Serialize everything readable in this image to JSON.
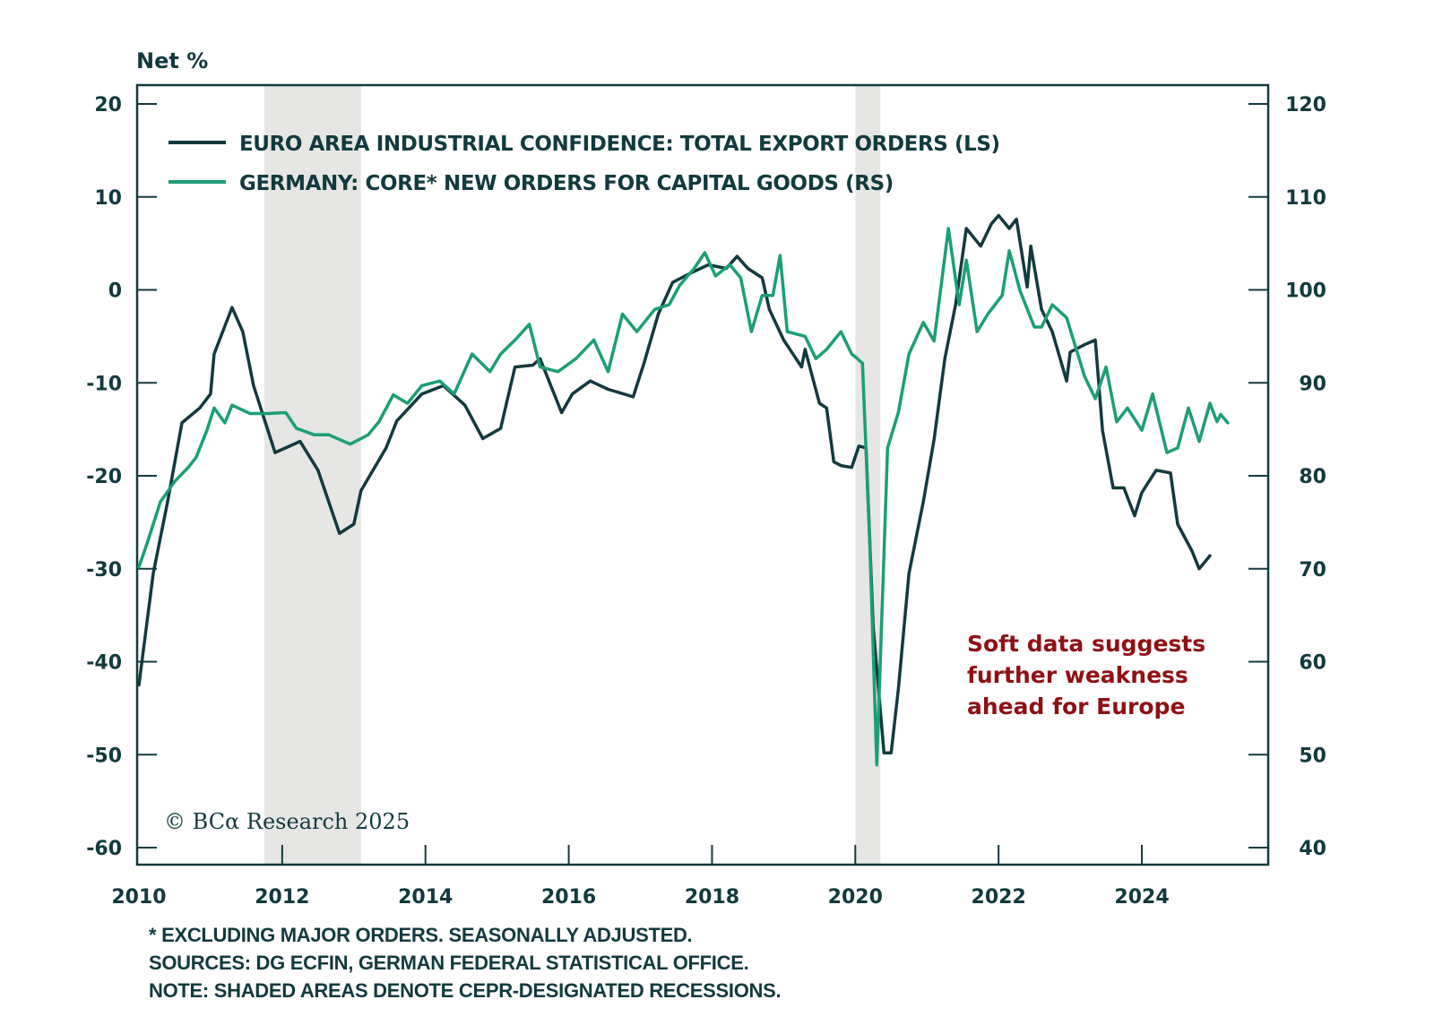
{
  "chart_data": {
    "type": "line",
    "title": "",
    "left_axis_unit": "Net %",
    "ylabel_left": "Net %",
    "ylabel_right": "",
    "xlim": [
      2010,
      2025.8
    ],
    "ylim_left": [
      -60,
      20
    ],
    "ylim_right": [
      40,
      120
    ],
    "x_ticks": [
      "2010",
      "2012",
      "2014",
      "2016",
      "2018",
      "2020",
      "2022",
      "2024"
    ],
    "x_tick_values": [
      2010,
      2012,
      2014,
      2016,
      2018,
      2020,
      2022,
      2024
    ],
    "y_ticks_left": [
      "20",
      "10",
      "0",
      "-10",
      "-20",
      "-30",
      "-40",
      "-50",
      "-60"
    ],
    "y_tick_values_left": [
      20,
      10,
      0,
      -10,
      -20,
      -30,
      -40,
      -50,
      -60
    ],
    "y_ticks_right": [
      "120",
      "110",
      "100",
      "90",
      "80",
      "70",
      "60",
      "50",
      "40"
    ],
    "y_tick_values_right": [
      120,
      110,
      100,
      90,
      80,
      70,
      60,
      50,
      40
    ],
    "grid": false,
    "legend_position": "top-left",
    "recessions": [
      [
        2011.75,
        2013.1
      ],
      [
        2020.0,
        2020.35
      ]
    ],
    "series": [
      {
        "name": "EURO AREA INDUSTRIAL CONFIDENCE: TOTAL EXPORT ORDERS (LS)",
        "axis": "left",
        "color": "#123a3e",
        "x": [
          2010.0,
          2010.2,
          2010.4,
          2010.6,
          2010.85,
          2011.0,
          2011.05,
          2011.3,
          2011.45,
          2011.6,
          2011.8,
          2011.9,
          2012.25,
          2012.5,
          2012.8,
          2013.0,
          2013.1,
          2013.45,
          2013.6,
          2013.95,
          2014.25,
          2014.55,
          2014.8,
          2015.05,
          2015.25,
          2015.5,
          2015.6,
          2015.9,
          2016.05,
          2016.3,
          2016.55,
          2016.9,
          2017.05,
          2017.25,
          2017.45,
          2017.7,
          2017.95,
          2018.2,
          2018.35,
          2018.5,
          2018.7,
          2018.8,
          2019.0,
          2019.25,
          2019.3,
          2019.5,
          2019.6,
          2019.7,
          2019.8,
          2019.95,
          2020.05,
          2020.15,
          2020.25,
          2020.4,
          2020.5,
          2020.6,
          2020.75,
          2020.95,
          2021.1,
          2021.25,
          2021.4,
          2021.55,
          2021.75,
          2021.9,
          2022.0,
          2022.15,
          2022.25,
          2022.4,
          2022.45,
          2022.6,
          2022.75,
          2022.95,
          2023.0,
          2023.2,
          2023.35,
          2023.45,
          2023.6,
          2023.75,
          2023.9,
          2024.0,
          2024.2,
          2024.4,
          2024.5,
          2024.7,
          2024.8,
          2024.95
        ],
        "values": [
          -42.5,
          -30.5,
          -22.8,
          -14.3,
          -12.7,
          -11.2,
          -6.9,
          -1.9,
          -4.5,
          -10.3,
          -15.1,
          -17.5,
          -16.3,
          -19.4,
          -26.2,
          -25.2,
          -21.6,
          -17.0,
          -14.1,
          -11.2,
          -10.3,
          -12.4,
          -16.0,
          -14.9,
          -8.3,
          -8.1,
          -7.4,
          -13.2,
          -11.2,
          -9.8,
          -10.7,
          -11.5,
          -7.9,
          -2.6,
          0.8,
          1.8,
          2.7,
          2.3,
          3.6,
          2.3,
          1.3,
          -2.1,
          -5.4,
          -8.3,
          -6.4,
          -12.2,
          -12.7,
          -18.5,
          -18.9,
          -19.1,
          -16.8,
          -17.0,
          -36.3,
          -49.8,
          -49.8,
          -43.0,
          -30.5,
          -22.8,
          -16.1,
          -7.4,
          -1.6,
          6.6,
          4.7,
          7.1,
          8.0,
          6.6,
          7.6,
          0.3,
          4.7,
          -2.1,
          -4.5,
          -9.8,
          -6.7,
          -5.9,
          -5.4,
          -15.1,
          -21.3,
          -21.3,
          -24.3,
          -21.8,
          -19.4,
          -19.7,
          -25.2,
          -28.1,
          -30.0,
          -28.6
        ]
      },
      {
        "name": "GERMANY: CORE* NEW ORDERS FOR CAPITAL GOODS (RS)",
        "axis": "right",
        "color": "#1b9e77",
        "x": [
          2010.0,
          2010.1,
          2010.3,
          2010.5,
          2010.7,
          2010.8,
          2010.95,
          2011.05,
          2011.2,
          2011.3,
          2011.55,
          2011.8,
          2012.05,
          2012.2,
          2012.45,
          2012.65,
          2012.95,
          2013.2,
          2013.35,
          2013.55,
          2013.75,
          2013.95,
          2014.2,
          2014.4,
          2014.65,
          2014.9,
          2015.05,
          2015.25,
          2015.45,
          2015.6,
          2015.85,
          2016.1,
          2016.35,
          2016.55,
          2016.75,
          2016.95,
          2017.2,
          2017.4,
          2017.55,
          2017.75,
          2017.9,
          2018.05,
          2018.25,
          2018.4,
          2018.55,
          2018.7,
          2018.85,
          2018.95,
          2019.05,
          2019.3,
          2019.45,
          2019.6,
          2019.8,
          2019.95,
          2020.0,
          2020.1,
          2020.2,
          2020.3,
          2020.45,
          2020.6,
          2020.75,
          2020.95,
          2021.1,
          2021.3,
          2021.45,
          2021.55,
          2021.7,
          2021.85,
          2022.05,
          2022.15,
          2022.3,
          2022.5,
          2022.6,
          2022.75,
          2022.95,
          2023.2,
          2023.35,
          2023.5,
          2023.65,
          2023.8,
          2024.0,
          2024.15,
          2024.35,
          2024.5,
          2024.65,
          2024.8,
          2024.95,
          2025.05,
          2025.1,
          2025.2
        ],
        "values": [
          70.2,
          72.4,
          77.2,
          79.4,
          81.0,
          82.0,
          84.9,
          87.3,
          85.7,
          87.6,
          86.7,
          86.7,
          86.8,
          85.1,
          84.4,
          84.4,
          83.4,
          84.4,
          85.8,
          88.7,
          87.8,
          89.7,
          90.2,
          88.8,
          93.1,
          91.2,
          93.1,
          94.6,
          96.3,
          91.7,
          91.2,
          92.6,
          94.6,
          91.2,
          97.4,
          95.5,
          97.9,
          98.4,
          100.5,
          102.3,
          104.0,
          101.5,
          102.7,
          101.3,
          95.5,
          99.4,
          99.4,
          103.7,
          95.5,
          95.0,
          92.6,
          93.6,
          95.5,
          93.1,
          92.8,
          92.1,
          73.3,
          48.9,
          83.0,
          86.8,
          93.1,
          96.5,
          94.5,
          106.6,
          98.4,
          103.2,
          95.5,
          97.4,
          99.4,
          104.2,
          99.9,
          96.0,
          96.0,
          98.4,
          97.0,
          90.7,
          88.3,
          91.7,
          85.8,
          87.3,
          84.9,
          88.8,
          82.5,
          83.0,
          87.3,
          83.7,
          87.8,
          85.8,
          86.6,
          85.7
        ]
      }
    ],
    "annotations": [
      {
        "text_lines": [
          "Soft data suggests",
          "further weakness",
          "ahead for Europe"
        ],
        "color": "#8f1014"
      }
    ]
  },
  "legend": {
    "series1": "EURO AREA INDUSTRIAL CONFIDENCE: TOTAL EXPORT ORDERS (LS)",
    "series2": "GERMANY: CORE* NEW ORDERS FOR CAPITAL GOODS (RS)"
  },
  "annotation": {
    "line1": "Soft data suggests",
    "line2": "further weakness",
    "line3": "ahead for Europe"
  },
  "copyright": "© BCα Research 2025",
  "footnotes": {
    "line1": "* EXCLUDING MAJOR ORDERS. SEASONALLY ADJUSTED.",
    "line2": "SOURCES: DG ECFIN, GERMAN FEDERAL STATISTICAL OFFICE.",
    "line3": "NOTE: SHADED AREAS DENOTE CEPR-DESIGNATED RECESSIONS."
  }
}
